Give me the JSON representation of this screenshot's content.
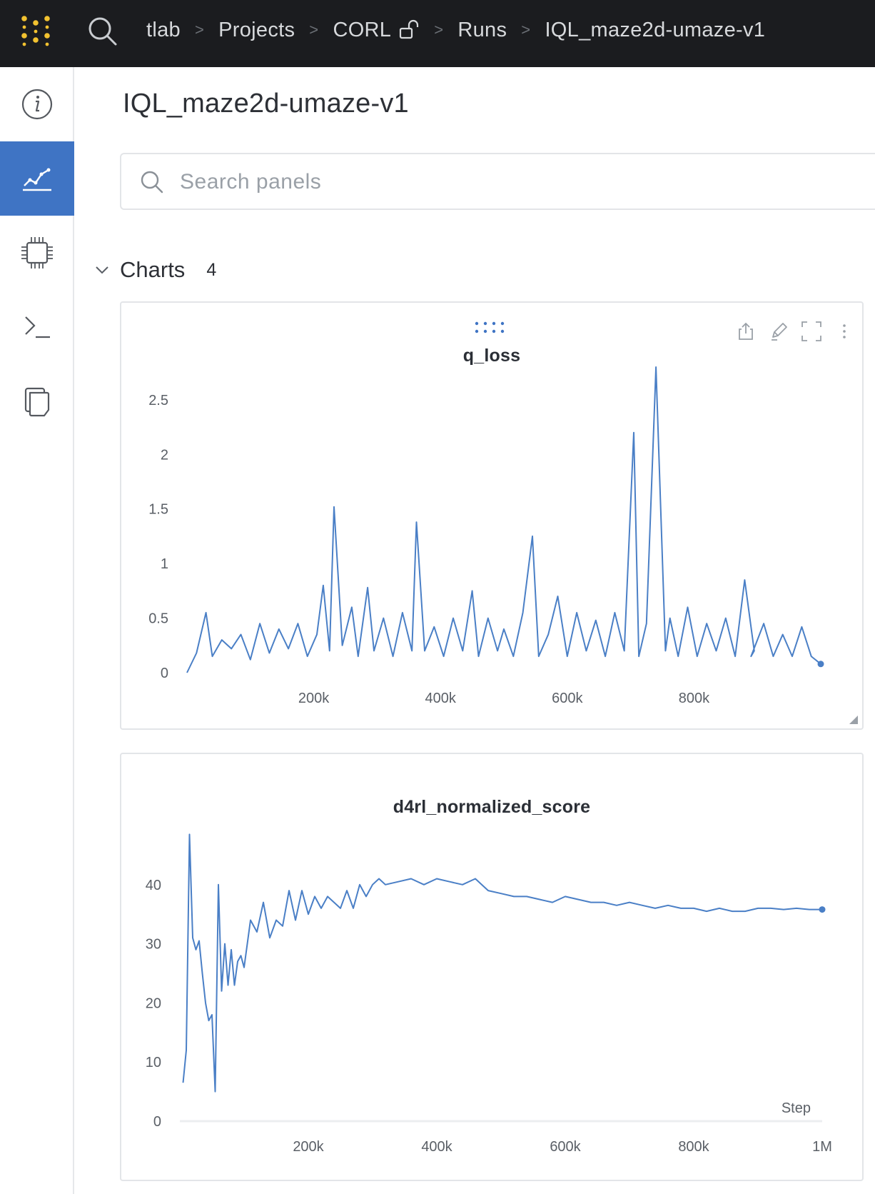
{
  "header": {
    "breadcrumb": [
      "tlab",
      "Projects",
      "CORL",
      "Runs",
      "IQL_maze2d-umaze-v1"
    ]
  },
  "page": {
    "title": "IQL_maze2d-umaze-v1",
    "search_placeholder": "Search panels"
  },
  "section": {
    "title": "Charts",
    "count": "4"
  },
  "colors": {
    "accent": "#3f74c4",
    "series": "#4a7fc6",
    "topbar": "#1b1c1f",
    "logo": "#f2c230"
  },
  "chart_data": [
    {
      "type": "line",
      "title": "q_loss",
      "xlabel": "",
      "ylabel": "",
      "xlim": [
        0,
        1000000
      ],
      "ylim": [
        0,
        2.8
      ],
      "xticks": [
        200000,
        400000,
        600000,
        800000
      ],
      "xtick_labels": [
        "200k",
        "400k",
        "600k",
        "800k"
      ],
      "yticks": [
        0,
        0.5,
        1,
        1.5,
        2,
        2.5
      ],
      "ytick_labels": [
        "0",
        "0.5",
        "1",
        "1.5",
        "2",
        "2.5"
      ],
      "grid": false,
      "series": [
        {
          "x": [
            0,
            15000,
            30000,
            40000,
            55000,
            70000,
            85000,
            100000,
            115000,
            130000,
            145000,
            160000,
            175000,
            190000,
            205000,
            215000,
            225000,
            232000,
            245000,
            260000,
            270000,
            285000,
            295000,
            310000,
            325000,
            340000,
            355000,
            362000,
            375000,
            390000,
            405000,
            420000,
            435000,
            450000,
            460000,
            475000,
            490000,
            500000,
            515000,
            530000,
            545000,
            555000,
            570000,
            585000,
            600000,
            615000,
            630000,
            645000,
            660000,
            675000,
            690000,
            705000,
            713000,
            725000,
            740000,
            755000,
            762000,
            775000,
            790000,
            805000,
            820000,
            835000,
            850000,
            865000,
            880000,
            895000,
            890000,
            910000,
            925000,
            940000,
            955000,
            970000,
            985000,
            1000000
          ],
          "y": [
            0.0,
            0.18,
            0.55,
            0.15,
            0.3,
            0.22,
            0.35,
            0.12,
            0.45,
            0.18,
            0.4,
            0.22,
            0.45,
            0.15,
            0.35,
            0.8,
            0.2,
            1.52,
            0.25,
            0.6,
            0.15,
            0.78,
            0.2,
            0.5,
            0.15,
            0.55,
            0.2,
            1.38,
            0.2,
            0.42,
            0.15,
            0.5,
            0.2,
            0.75,
            0.15,
            0.5,
            0.2,
            0.4,
            0.15,
            0.55,
            1.25,
            0.15,
            0.35,
            0.7,
            0.15,
            0.55,
            0.2,
            0.48,
            0.15,
            0.55,
            0.2,
            2.2,
            0.15,
            0.45,
            2.8,
            0.2,
            0.5,
            0.15,
            0.6,
            0.15,
            0.45,
            0.2,
            0.5,
            0.15,
            0.85,
            0.2,
            0.15,
            0.45,
            0.15,
            0.35,
            0.15,
            0.42,
            0.15,
            0.08
          ]
        }
      ]
    },
    {
      "type": "line",
      "title": "d4rl_normalized_score",
      "xlabel": "Step",
      "ylabel": "",
      "xlim": [
        0,
        1000000
      ],
      "ylim": [
        0,
        50
      ],
      "xticks": [
        200000,
        400000,
        600000,
        800000,
        1000000
      ],
      "xtick_labels": [
        "200k",
        "400k",
        "600k",
        "800k",
        "1M"
      ],
      "yticks": [
        0,
        10,
        20,
        30,
        40
      ],
      "ytick_labels": [
        "0",
        "10",
        "20",
        "30",
        "40"
      ],
      "grid": false,
      "series": [
        {
          "x": [
            5000,
            10000,
            15000,
            20000,
            25000,
            30000,
            35000,
            40000,
            45000,
            50000,
            55000,
            60000,
            65000,
            70000,
            75000,
            80000,
            85000,
            90000,
            95000,
            100000,
            110000,
            120000,
            130000,
            140000,
            150000,
            160000,
            170000,
            180000,
            190000,
            200000,
            210000,
            220000,
            230000,
            240000,
            250000,
            260000,
            270000,
            280000,
            290000,
            300000,
            310000,
            320000,
            340000,
            360000,
            380000,
            400000,
            420000,
            440000,
            460000,
            480000,
            500000,
            520000,
            540000,
            560000,
            580000,
            600000,
            620000,
            640000,
            660000,
            680000,
            700000,
            720000,
            740000,
            760000,
            780000,
            800000,
            820000,
            840000,
            860000,
            880000,
            900000,
            920000,
            940000,
            960000,
            980000,
            1000000
          ],
          "y": [
            6.5,
            12,
            48.5,
            31,
            29,
            30.5,
            25,
            20,
            17,
            18,
            5,
            40,
            22,
            30,
            23,
            29,
            23,
            27,
            28,
            26,
            34,
            32,
            37,
            31,
            34,
            33,
            39,
            34,
            39,
            35,
            38,
            36,
            38,
            37,
            36,
            39,
            36,
            40,
            38,
            40,
            41,
            40,
            40.5,
            41,
            40,
            41,
            40.5,
            40,
            41,
            39,
            38.5,
            38,
            38,
            37.5,
            37,
            38,
            37.5,
            37,
            37,
            36.5,
            37,
            36.5,
            36,
            36.5,
            36,
            36,
            35.5,
            36,
            35.5,
            35.5,
            36,
            36,
            35.8,
            36,
            35.8,
            35.8
          ]
        }
      ]
    }
  ]
}
